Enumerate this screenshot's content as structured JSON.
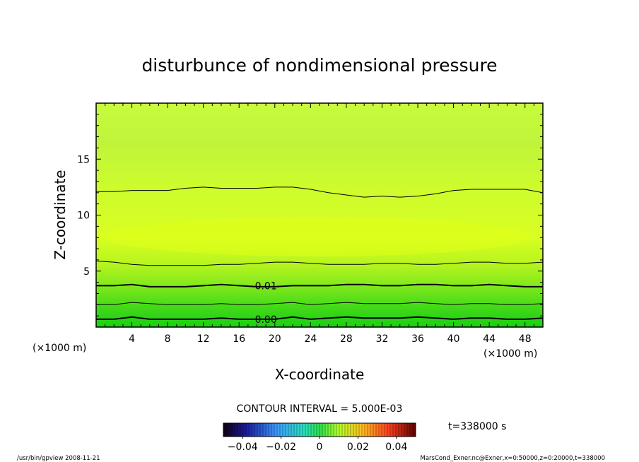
{
  "chart_data": {
    "type": "heatmap",
    "title": "disturbunce of nondimensional pressure",
    "xlabel": "X-coordinate",
    "ylabel": "Z-coordinate",
    "x_unit": "(×1000 m)",
    "y_unit": "(×1000 m)",
    "x_ticks": [
      "4",
      "8",
      "12",
      "16",
      "20",
      "24",
      "28",
      "32",
      "36",
      "40",
      "44",
      "48"
    ],
    "y_ticks": [
      "5",
      "10",
      "15"
    ],
    "xlim": [
      0,
      50
    ],
    "ylim": [
      0,
      20
    ],
    "contour_interval_label": "CONTOUR INTERVAL = 5.000E-03",
    "contour_interval": 0.005,
    "contour_labels": [
      {
        "text": "0.01",
        "x": 19,
        "z": 3.7
      },
      {
        "text": "0.00",
        "x": 19,
        "z": 0.7
      }
    ],
    "contours": [
      {
        "level": 0.0,
        "z": [
          0.7,
          0.7,
          0.9,
          0.7,
          0.7,
          0.7,
          0.7,
          0.8,
          0.7,
          0.7,
          0.7,
          0.9,
          0.7,
          0.8,
          0.9,
          0.8,
          0.8,
          0.8,
          0.9,
          0.8,
          0.7,
          0.8,
          0.8,
          0.7,
          0.7,
          0.8
        ],
        "thick": true
      },
      {
        "level": 0.005,
        "z": [
          2.0,
          2.0,
          2.2,
          2.1,
          2.0,
          2.0,
          2.0,
          2.1,
          2.0,
          2.0,
          2.1,
          2.2,
          2.0,
          2.1,
          2.2,
          2.1,
          2.1,
          2.1,
          2.2,
          2.1,
          2.0,
          2.1,
          2.1,
          2.0,
          2.0,
          2.1
        ],
        "thick": false
      },
      {
        "level": 0.01,
        "z": [
          3.7,
          3.7,
          3.8,
          3.6,
          3.6,
          3.6,
          3.7,
          3.8,
          3.7,
          3.6,
          3.6,
          3.7,
          3.7,
          3.7,
          3.8,
          3.8,
          3.7,
          3.7,
          3.8,
          3.8,
          3.7,
          3.7,
          3.8,
          3.7,
          3.6,
          3.6
        ],
        "thick": true
      },
      {
        "level": 0.015,
        "z": [
          5.9,
          5.8,
          5.6,
          5.5,
          5.5,
          5.5,
          5.5,
          5.6,
          5.6,
          5.7,
          5.8,
          5.8,
          5.7,
          5.6,
          5.6,
          5.6,
          5.7,
          5.7,
          5.6,
          5.6,
          5.7,
          5.8,
          5.8,
          5.7,
          5.7,
          5.8
        ],
        "thick": false
      },
      {
        "level": 0.015,
        "z": [
          12.1,
          12.1,
          12.2,
          12.2,
          12.2,
          12.4,
          12.5,
          12.4,
          12.4,
          12.4,
          12.5,
          12.5,
          12.3,
          12.0,
          11.8,
          11.6,
          11.7,
          11.6,
          11.7,
          11.9,
          12.2,
          12.3,
          12.3,
          12.3,
          12.3,
          12.0
        ],
        "thick": false
      }
    ],
    "time_label": "t=338000 s",
    "colorbar": {
      "min": -0.05,
      "max": 0.05,
      "tick_values": [
        -0.04,
        -0.02,
        0,
        0.02,
        0.04
      ],
      "tick_labels": [
        "−0.04",
        "−0.02",
        "0",
        "0.02",
        "0.04"
      ]
    },
    "colors": {
      "background": "#ffffff",
      "field_top": "#ccff3a",
      "field_mid": "#d4ff2a",
      "field_bottom": "#22dd1a",
      "lines": "#000000"
    },
    "grid": false
  },
  "footer": {
    "left": "/usr/bin/gpview   2008-11-21",
    "right": "MarsCond_Exner.nc@Exner,x=0:50000,z=0:20000,t=338000"
  }
}
